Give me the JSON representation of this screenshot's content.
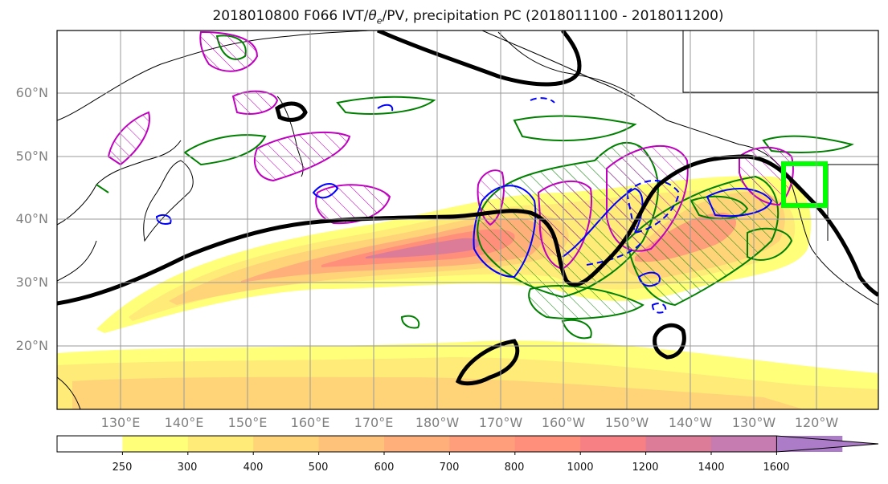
{
  "title": {
    "prefix": "2018010800 F066 IVT/",
    "theta_symbol": "θ",
    "theta_sub": "e",
    "suffix": "/PV, precipitation PC (2018011100 - 2018011200)"
  },
  "axes": {
    "lat_labels": [
      "60°N",
      "50°N",
      "40°N",
      "30°N",
      "20°N"
    ],
    "lon_labels": [
      "130°E",
      "140°E",
      "150°E",
      "160°E",
      "170°E",
      "180°W",
      "170°W",
      "160°W",
      "150°W",
      "140°W",
      "130°W",
      "120°W"
    ]
  },
  "colorbar": {
    "labels": [
      "250",
      "300",
      "400",
      "500",
      "600",
      "700",
      "800",
      "1000",
      "1200",
      "1400",
      "1600"
    ],
    "colors": [
      "#ffffff",
      "#ffff7a",
      "#ffeb78",
      "#ffd478",
      "#ffc27a",
      "#ffb07a",
      "#ff9e7a",
      "#ff8f7a",
      "#f78085",
      "#dc7c98",
      "#c67cb0",
      "#ad7cc8"
    ]
  },
  "legend_colors": {
    "pv_contour": "#000000",
    "theta_e_contour": "#0000ff",
    "precip_positive": "#008000",
    "precip_negative": "#bf00bf",
    "target_box": "#00ff00"
  }
}
